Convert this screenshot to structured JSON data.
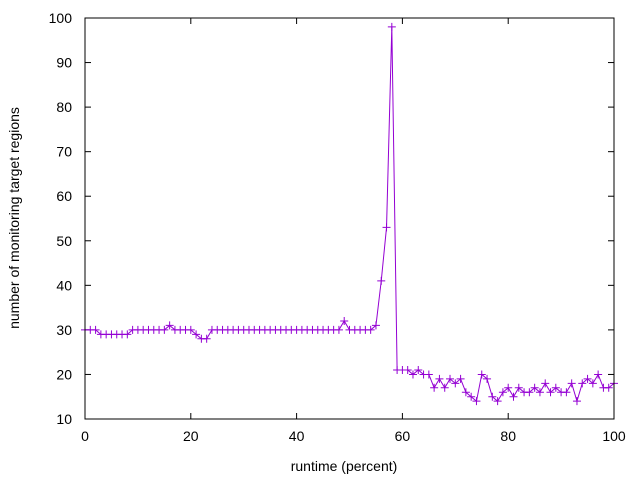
{
  "chart_data": {
    "type": "line",
    "title": "",
    "xlabel": "runtime (percent)",
    "ylabel": "number of monitoring target regions",
    "xlim": [
      0,
      100
    ],
    "ylim": [
      10,
      100
    ],
    "xticks": [
      0,
      20,
      40,
      60,
      80,
      100
    ],
    "yticks": [
      10,
      20,
      30,
      40,
      50,
      60,
      70,
      80,
      90,
      100
    ],
    "grid": false,
    "marker": "plus",
    "series": [
      {
        "color": "#9400d3",
        "x": [
          0,
          1,
          2,
          3,
          4,
          5,
          6,
          7,
          8,
          9,
          10,
          11,
          12,
          13,
          14,
          15,
          16,
          17,
          18,
          19,
          20,
          21,
          22,
          23,
          24,
          25,
          26,
          27,
          28,
          29,
          30,
          31,
          32,
          33,
          34,
          35,
          36,
          37,
          38,
          39,
          40,
          41,
          42,
          43,
          44,
          45,
          46,
          47,
          48,
          49,
          50,
          51,
          52,
          53,
          54,
          55,
          56,
          57,
          58,
          59,
          60,
          61,
          62,
          63,
          64,
          65,
          66,
          67,
          68,
          69,
          70,
          71,
          72,
          73,
          74,
          75,
          76,
          77,
          78,
          79,
          80,
          81,
          82,
          83,
          84,
          85,
          86,
          87,
          88,
          89,
          90,
          91,
          92,
          93,
          94,
          95,
          96,
          97,
          98,
          99,
          100
        ],
        "y": [
          30,
          30,
          30,
          29,
          29,
          29,
          29,
          29,
          29,
          30,
          30,
          30,
          30,
          30,
          30,
          30,
          31,
          30,
          30,
          30,
          30,
          29,
          28,
          28,
          30,
          30,
          30,
          30,
          30,
          30,
          30,
          30,
          30,
          30,
          30,
          30,
          30,
          30,
          30,
          30,
          30,
          30,
          30,
          30,
          30,
          30,
          30,
          30,
          30,
          32,
          30,
          30,
          30,
          30,
          30,
          31,
          41,
          53,
          98,
          21,
          21,
          21,
          20,
          21,
          20,
          20,
          17,
          19,
          17,
          19,
          18,
          19,
          16,
          15,
          14,
          20,
          19,
          15,
          14,
          16,
          17,
          15,
          17,
          16,
          16,
          17,
          16,
          18,
          16,
          17,
          16,
          16,
          18,
          14,
          18,
          19,
          18,
          20,
          17,
          17,
          18
        ]
      }
    ]
  }
}
